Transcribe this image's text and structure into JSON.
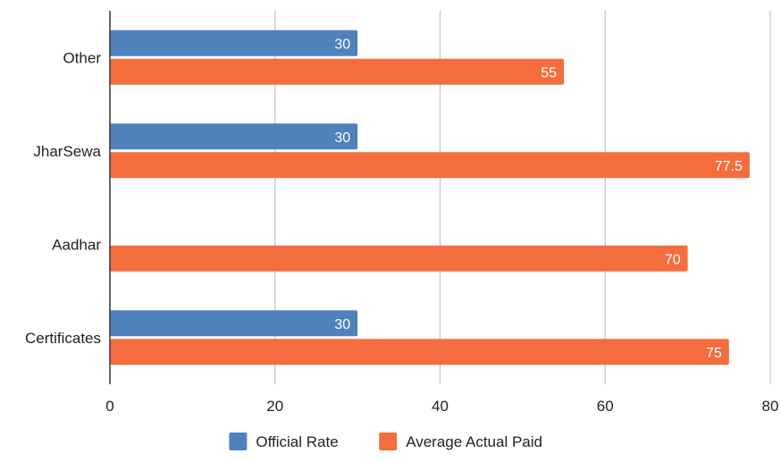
{
  "chart_data": {
    "type": "bar",
    "orientation": "horizontal",
    "categories": [
      "Other",
      "JharSewa",
      "Aadhar",
      "Certificates"
    ],
    "series": [
      {
        "name": "Official Rate",
        "color": "#4f81bd",
        "values": [
          30,
          30,
          null,
          30
        ],
        "labels": [
          "30",
          "30",
          "",
          "30"
        ]
      },
      {
        "name": "Average Actual Paid",
        "color": "#f46d3f",
        "values": [
          55,
          77.5,
          70,
          75
        ],
        "labels": [
          "55",
          "77.5",
          "70",
          "75"
        ]
      }
    ],
    "xlim": [
      0,
      80
    ],
    "xticks": [
      "0",
      "20",
      "40",
      "60",
      "80"
    ],
    "title": "",
    "xlabel": "",
    "ylabel": "",
    "grid": "vertical",
    "legend": "bottom-center"
  }
}
